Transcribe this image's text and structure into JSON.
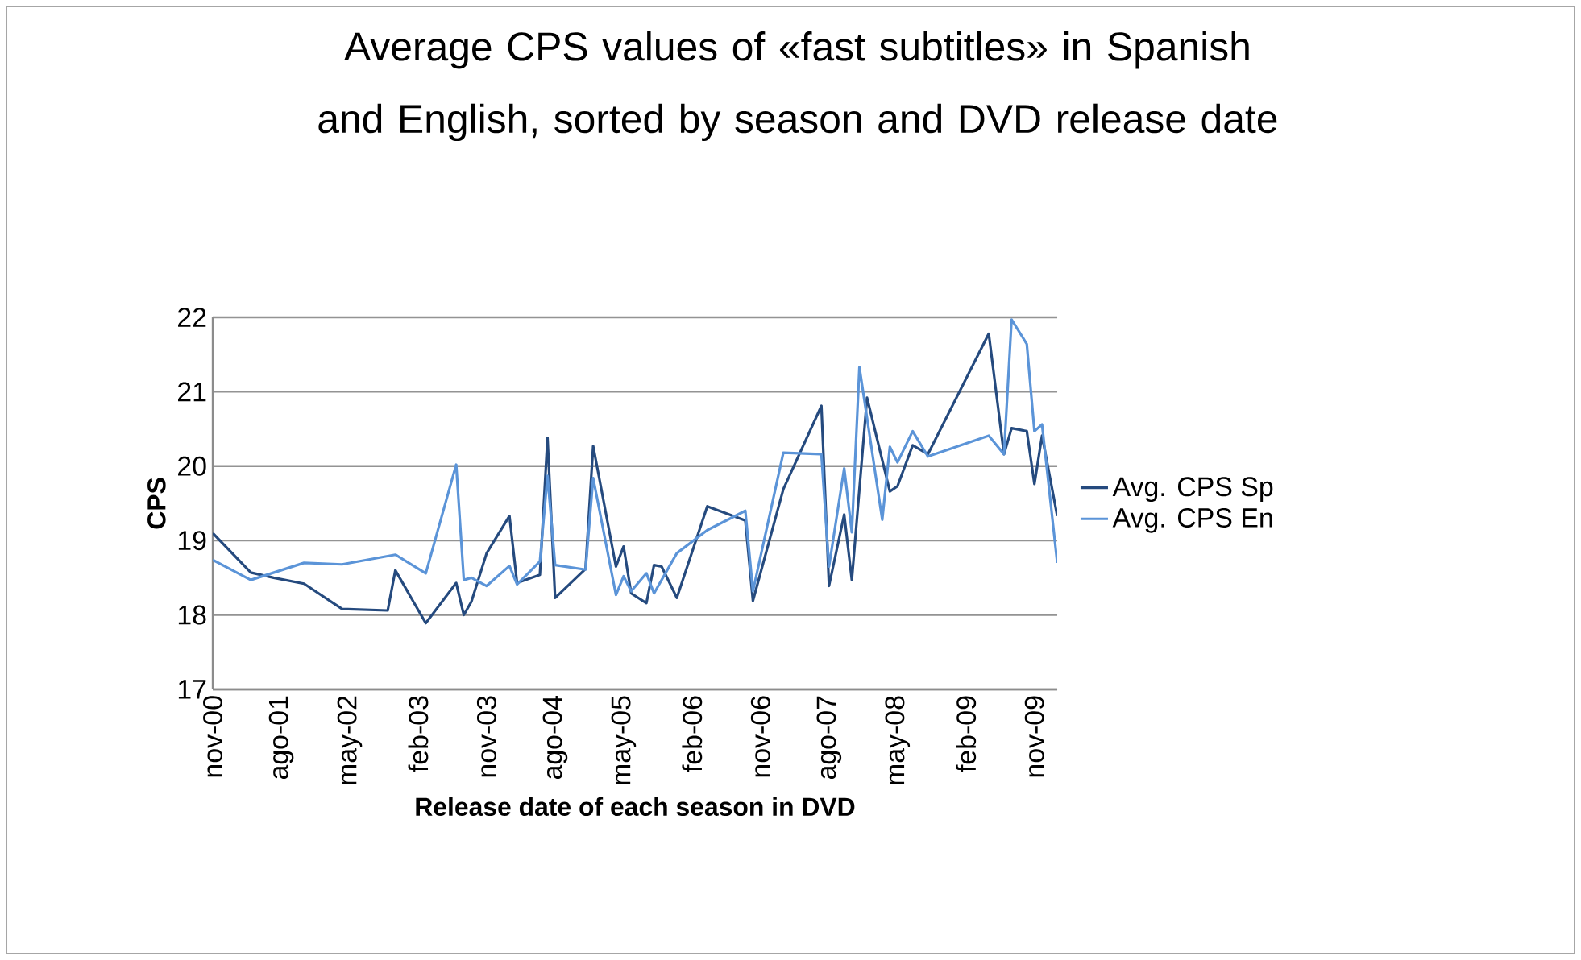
{
  "chart_data": {
    "type": "line",
    "title": "Average CPS values of «fast subtitles» in Spanish and English, sorted by season and DVD release date",
    "xlabel": "Release date of each season in DVD",
    "ylabel": "CPS",
    "xlim": [
      "2000-11",
      "2010-02"
    ],
    "ylim": [
      17,
      22
    ],
    "yticks": [
      17,
      18,
      19,
      20,
      21,
      22
    ],
    "xticks": [
      {
        "value": "2000-11",
        "label": "nov-00"
      },
      {
        "value": "2001-08",
        "label": "ago-01"
      },
      {
        "value": "2002-05",
        "label": "may-02"
      },
      {
        "value": "2003-02",
        "label": "feb-03"
      },
      {
        "value": "2003-11",
        "label": "nov-03"
      },
      {
        "value": "2004-08",
        "label": "ago-04"
      },
      {
        "value": "2005-05",
        "label": "may-05"
      },
      {
        "value": "2006-02",
        "label": "feb-06"
      },
      {
        "value": "2006-11",
        "label": "nov-06"
      },
      {
        "value": "2007-08",
        "label": "ago-07"
      },
      {
        "value": "2008-05",
        "label": "may-08"
      },
      {
        "value": "2009-02",
        "label": "feb-09"
      },
      {
        "value": "2009-11",
        "label": "nov-09"
      }
    ],
    "grid": "y",
    "legend": "right",
    "marker": "none",
    "line_style": "solid",
    "series": [
      {
        "name": "Avg. CPS Sp",
        "color": "#254a7e",
        "x": [
          "2000-11",
          "2001-04",
          "2001-07",
          "2001-11",
          "2002-04",
          "2002-10",
          "2002-11",
          "2003-03",
          "2003-07",
          "2003-08",
          "2003-09",
          "2003-11",
          "2004-02",
          "2004-03",
          "2004-06",
          "2004-07",
          "2004-08",
          "2004-12",
          "2005-01",
          "2005-04",
          "2005-05",
          "2005-06",
          "2005-08",
          "2005-09",
          "2005-10",
          "2005-12",
          "2006-04",
          "2006-09",
          "2006-10",
          "2007-02",
          "2007-07",
          "2007-08",
          "2007-10",
          "2007-11",
          "2008-01",
          "2008-04",
          "2008-05",
          "2008-07",
          "2008-09",
          "2009-05",
          "2009-07",
          "2009-08",
          "2009-10",
          "2009-11",
          "2009-12",
          "2010-02"
        ],
        "values": [
          19.1,
          18.57,
          18.5,
          18.42,
          18.08,
          18.06,
          18.6,
          17.89,
          18.43,
          18.0,
          18.18,
          18.83,
          19.33,
          18.43,
          18.54,
          20.38,
          18.23,
          18.62,
          20.27,
          18.65,
          18.92,
          18.29,
          18.16,
          18.67,
          18.65,
          18.23,
          19.46,
          19.27,
          18.19,
          19.69,
          20.81,
          18.39,
          19.35,
          18.47,
          20.92,
          19.66,
          19.73,
          20.28,
          20.16,
          21.78,
          20.16,
          20.51,
          20.47,
          19.76,
          20.41,
          19.33
        ]
      },
      {
        "name": "Avg. CPS En",
        "color": "#5b94d8",
        "x": [
          "2000-11",
          "2001-04",
          "2001-11",
          "2002-04",
          "2002-11",
          "2003-03",
          "2003-07",
          "2003-08",
          "2003-09",
          "2003-11",
          "2004-02",
          "2004-03",
          "2004-06",
          "2004-07",
          "2004-08",
          "2004-12",
          "2005-01",
          "2005-04",
          "2005-05",
          "2005-06",
          "2005-08",
          "2005-09",
          "2005-12",
          "2006-04",
          "2006-09",
          "2006-10",
          "2007-02",
          "2007-07",
          "2007-08",
          "2007-10",
          "2007-11",
          "2007-12",
          "2008-03",
          "2008-04",
          "2008-05",
          "2008-07",
          "2008-09",
          "2009-05",
          "2009-07",
          "2009-08",
          "2009-10",
          "2009-11",
          "2009-12",
          "2010-02"
        ],
        "values": [
          18.74,
          18.47,
          18.7,
          18.68,
          18.81,
          18.56,
          20.02,
          18.47,
          18.5,
          18.39,
          18.66,
          18.41,
          18.72,
          19.87,
          18.67,
          18.61,
          19.84,
          18.27,
          18.52,
          18.32,
          18.56,
          18.29,
          18.83,
          19.14,
          19.4,
          18.32,
          20.18,
          20.16,
          18.65,
          19.97,
          19.11,
          21.33,
          19.28,
          20.26,
          20.05,
          20.47,
          20.13,
          20.41,
          20.16,
          21.97,
          21.64,
          20.47,
          20.56,
          18.7
        ]
      }
    ]
  }
}
